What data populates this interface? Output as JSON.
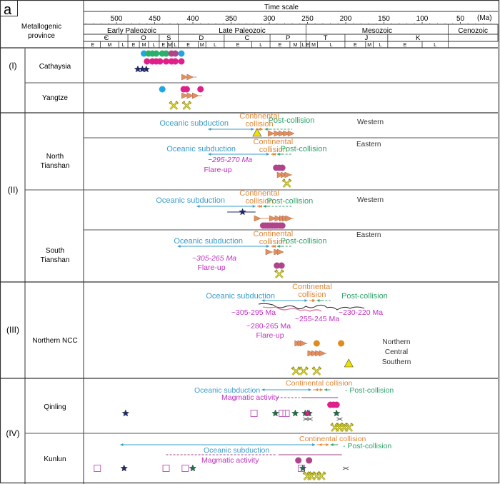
{
  "chart_data": {
    "type": "table",
    "panel_label": "a",
    "title": "Time scale",
    "unit": "(Ma)",
    "row_header": "Metallogenic province",
    "xlim": [
      545,
      0
    ],
    "ticks": [
      500,
      450,
      400,
      350,
      300,
      250,
      200,
      150,
      100,
      50
    ],
    "eras": [
      {
        "name": "Early Paleozoic",
        "from": 541,
        "to": 419
      },
      {
        "name": "Late Paleozoic",
        "from": 419,
        "to": 252
      },
      {
        "name": "Mesozoic",
        "from": 252,
        "to": 66
      },
      {
        "name": "Cenozoic",
        "from": 66,
        "to": 0
      }
    ],
    "periods": [
      {
        "name": "Є",
        "from": 541,
        "to": 485
      },
      {
        "name": "O",
        "from": 485,
        "to": 444
      },
      {
        "name": "S",
        "from": 444,
        "to": 419
      },
      {
        "name": "D",
        "from": 419,
        "to": 359
      },
      {
        "name": "C",
        "from": 359,
        "to": 299
      },
      {
        "name": "P",
        "from": 299,
        "to": 252
      },
      {
        "name": "T",
        "from": 252,
        "to": 201
      },
      {
        "name": "J",
        "from": 201,
        "to": 145
      },
      {
        "name": "K",
        "from": 145,
        "to": 66
      },
      {
        "name": "",
        "from": 66,
        "to": 0
      }
    ],
    "epochs": [
      {
        "name": "E",
        "from": 541,
        "to": 521
      },
      {
        "name": "M",
        "from": 521,
        "to": 497
      },
      {
        "name": "L",
        "from": 497,
        "to": 485
      },
      {
        "name": "E",
        "from": 485,
        "to": 470
      },
      {
        "name": "M",
        "from": 470,
        "to": 458
      },
      {
        "name": "L",
        "from": 458,
        "to": 444
      },
      {
        "name": "E",
        "from": 444,
        "to": 433
      },
      {
        "name": "M",
        "from": 433,
        "to": 427
      },
      {
        "name": "L",
        "from": 427,
        "to": 419
      },
      {
        "name": "E",
        "from": 419,
        "to": 393
      },
      {
        "name": "M",
        "from": 393,
        "to": 383
      },
      {
        "name": "L",
        "from": 383,
        "to": 359
      },
      {
        "name": "E",
        "from": 359,
        "to": 323
      },
      {
        "name": "L",
        "from": 323,
        "to": 299
      },
      {
        "name": "E",
        "from": 299,
        "to": 273
      },
      {
        "name": "M",
        "from": 273,
        "to": 259
      },
      {
        "name": "L",
        "from": 259,
        "to": 252
      },
      {
        "name": "E",
        "from": 252,
        "to": 247
      },
      {
        "name": "M",
        "from": 247,
        "to": 237
      },
      {
        "name": "L",
        "from": 237,
        "to": 201
      },
      {
        "name": "E",
        "from": 201,
        "to": 174
      },
      {
        "name": "M",
        "from": 174,
        "to": 164
      },
      {
        "name": "L",
        "from": 164,
        "to": 145
      },
      {
        "name": "E",
        "from": 145,
        "to": 100
      },
      {
        "name": "L",
        "from": 100,
        "to": 66
      }
    ],
    "colors": {
      "oceanic": "#3a9cc9",
      "continental": "#e0883a",
      "post": "#2fa36b",
      "flare": "#c030c0",
      "circle_blue": "#1fa8e0",
      "circle_green": "#2ab06a",
      "circle_magenta": "#e0208a",
      "circle_purple": "#b0448a",
      "circle_orange": "#e08a20",
      "star_navy": "#1e2a6e",
      "star_green": "#1f6e4a",
      "arrow_orange": "#e09060",
      "triangle": "#f0e000",
      "square": "#c060c0"
    },
    "provinces": [
      {
        "group": "(I)",
        "rows": [
          {
            "name": "Cathaysia",
            "sub": "",
            "markers": [
              {
                "type": "circle",
                "color": "circle_blue",
                "ages": [
                  464,
                  415
                ]
              },
              {
                "type": "circle",
                "color": "circle_green",
                "ages": [
                  458,
                  453,
                  448,
                  440,
                  435
                ]
              },
              {
                "type": "circle",
                "color": "circle_purple",
                "ages": [
                  428,
                  423
                ]
              },
              {
                "type": "circle",
                "color": "circle_magenta",
                "ages": [
                  460,
                  453,
                  448,
                  443,
                  435,
                  428,
                  423,
                  415
                ]
              },
              {
                "type": "star",
                "color": "star_navy",
                "ages": [
                  472,
                  466,
                  461
                ]
              },
              {
                "type": "arrow",
                "color": "arrow_orange",
                "ages": [
                  410,
                  403
                ]
              }
            ]
          },
          {
            "name": "Yangtze",
            "sub": "",
            "markers": [
              {
                "type": "circle",
                "color": "circle_blue",
                "ages": [
                  440
                ]
              },
              {
                "type": "circle",
                "color": "circle_magenta",
                "ages": [
                  412,
                  408,
                  390
                ]
              },
              {
                "type": "arrow",
                "color": "arrow_orange",
                "ages": [
                  410,
                  403,
                  396
                ]
              },
              {
                "type": "mine",
                "ages": [
                  425,
                  408
                ]
              }
            ]
          }
        ]
      },
      {
        "group": "(II)",
        "rows": [
          {
            "name": "North Tianshan",
            "sub": "Western",
            "phases": {
              "oceanic": "Oceanic subduction",
              "continental": "Continental collision",
              "post": "Post-collision",
              "oceanic_range": [
                380,
                320
              ],
              "continental_range": [
                318,
                308
              ],
              "post_range": [
                306,
                270
              ]
            },
            "markers": [
              {
                "type": "triangle",
                "ages": [
                  316
                ]
              },
              {
                "type": "arrow",
                "color": "arrow_orange",
                "ages": [
                  297,
                  289,
                  283,
                  277,
                  271
                ]
              }
            ]
          },
          {
            "name": "North Tianshan",
            "sub": "Eastern",
            "phases": {
              "oceanic": "Oceanic subduction",
              "continental": "Continental collision",
              "post": "Post-collision",
              "oceanic_range": [
                380,
                300
              ],
              "continental_range": [
                298,
                292
              ],
              "post_range": [
                290,
                270
              ]
            },
            "flare": {
              "label": "~295-270 Ma",
              "text": "Flare-up"
            },
            "markers": [
              {
                "type": "circle",
                "color": "circle_purple",
                "ages": [
                  291,
                  287,
                  283
                ]
              },
              {
                "type": "arrow",
                "color": "arrow_orange",
                "ages": [
                  285,
                  280,
                  275
                ]
              },
              {
                "type": "mine",
                "ages": [
                  277
                ]
              }
            ]
          },
          {
            "name": "South Tianshan",
            "sub": "Western",
            "phases": {
              "oceanic": "Oceanic subduction",
              "continental": "Continental collision",
              "post": "Post-collision",
              "oceanic_range": [
                395,
                318
              ],
              "continental_range": [
                316,
                310
              ],
              "post_range": [
                308,
                270
              ]
            },
            "markers": [
              {
                "type": "star",
                "color": "star_navy",
                "ages": [
                  335
                ],
                "range": [
                  355,
                  318
                ]
              },
              {
                "type": "arrow",
                "color": "arrow_orange",
                "ages": [
                  315,
                  295,
                  288,
                  282,
                  278,
                  274
                ]
              },
              {
                "type": "circle",
                "color": "circle_purple",
                "ages": [
                  308,
                  305,
                  302,
                  299,
                  296,
                  293,
                  290,
                  286,
                  283
                ]
              }
            ]
          },
          {
            "name": "South Tianshan",
            "sub": "Eastern",
            "phases": {
              "oceanic": "Oceanic subduction",
              "continental": "Continental collision",
              "post": "Post-collision",
              "oceanic_range": [
                420,
                300
              ],
              "continental_range": [
                298,
                292
              ],
              "post_range": [
                290,
                270
              ]
            },
            "flare": {
              "label": "~305-265 Ma",
              "text": "Flare-up"
            },
            "markers": [
              {
                "type": "arrow",
                "color": "arrow_orange",
                "ages": [
                  300,
                  289,
                  285
                ]
              },
              {
                "type": "circle",
                "color": "circle_purple",
                "ages": [
                  290,
                  284
                ]
              },
              {
                "type": "mine",
                "ages": [
                  287
                ]
              }
            ]
          }
        ]
      },
      {
        "group": "(III)",
        "rows": [
          {
            "name": "Northern NCC",
            "sub": "",
            "phases": {
              "oceanic": "Oceanic subduction",
              "continental": "Continental collision",
              "post": "Post-collision",
              "oceanic_range": [
                310,
                250
              ],
              "continental_range": [
                248,
                240
              ],
              "post_range": [
                238,
                220
              ]
            },
            "flare_labels": [
              "~305-295 Ma",
              "~255-245 Ma",
              "~230-220 Ma",
              "~280-265 Ma",
              "Flare-up"
            ],
            "zones": [
              "Northern",
              "Central",
              "Southern"
            ],
            "markers": [
              {
                "type": "arrow",
                "color": "arrow_orange",
                "ages": [
                  262,
                  258,
                  255
                ]
              },
              {
                "type": "circle",
                "color": "circle_orange",
                "ages": [
                  238,
                  206
                ]
              },
              {
                "type": "arrow",
                "color": "arrow_orange",
                "ages": [
                  245,
                  240,
                  235,
                  230
                ]
              },
              {
                "type": "triangle",
                "ages": [
                  196
                ]
              },
              {
                "type": "mine",
                "ages": [
                  265,
                  255,
                  238
                ]
              }
            ]
          }
        ]
      },
      {
        "group": "(IV)",
        "rows": [
          {
            "name": "Qinling",
            "sub": "",
            "phases": {
              "oceanic": "Oceanic subduction",
              "continental": "Continental collision",
              "post": "Post-collision",
              "magmatic": "Magmatic activity",
              "oceanic_range": [
                310,
                245
              ],
              "continental_range": [
                243,
                230
              ],
              "post_range": [
                228,
                220
              ],
              "magmatic_dashed": [
                290,
                260
              ],
              "magmatic_solid": [
                258,
                210
              ]
            },
            "markers": [
              {
                "type": "circle",
                "color": "circle_magenta",
                "ages": [
                  220,
                  216,
                  212
                ]
              },
              {
                "type": "star",
                "color": "star_navy",
                "ages": [
                  488
                ]
              },
              {
                "type": "square",
                "ages": [
                  320,
                  283,
                  278
                ]
              },
              {
                "type": "star",
                "color": "star_green",
                "ages": [
                  292,
                  266,
                  253,
                  248,
                  212
                ]
              },
              {
                "type": "star",
                "color": "circle_magenta",
                "ages": [
                  250
                ]
              },
              {
                "type": "cross",
                "ages": [
                  252,
                  247,
                  208
                ]
              },
              {
                "type": "mine",
                "ages": [
                  214,
                  208,
                  202,
                  196
                ]
              }
            ]
          },
          {
            "name": "Kunlun",
            "sub": "",
            "phases": {
              "oceanic": "Oceanic subduction",
              "continental": "Continental collision",
              "post": "Post-collision",
              "magmatic": "Magmatic activity",
              "oceanic_range": [
                495,
                240
              ],
              "continental_range": [
                238,
                222
              ],
              "post_range": [
                220,
                210
              ],
              "magmatic_dashed": [
                435,
                290
              ],
              "magmatic_solid": [
                288,
                205
              ]
            },
            "markers": [
              {
                "type": "circle",
                "color": "circle_purple",
                "ages": [
                  262,
                  248
                ]
              },
              {
                "type": "square",
                "ages": [
                  525,
                  435,
                  410,
                  258
                ]
              },
              {
                "type": "star",
                "color": "star_navy",
                "ages": [
                  490
                ]
              },
              {
                "type": "star",
                "color": "star_green",
                "ages": [
                  402,
                  258
                ]
              },
              {
                "type": "cross",
                "ages": [
                  200
                ]
              },
              {
                "type": "mine",
                "ages": [
                  250,
                  245,
                  238,
                  232
                ]
              }
            ]
          }
        ]
      }
    ]
  }
}
